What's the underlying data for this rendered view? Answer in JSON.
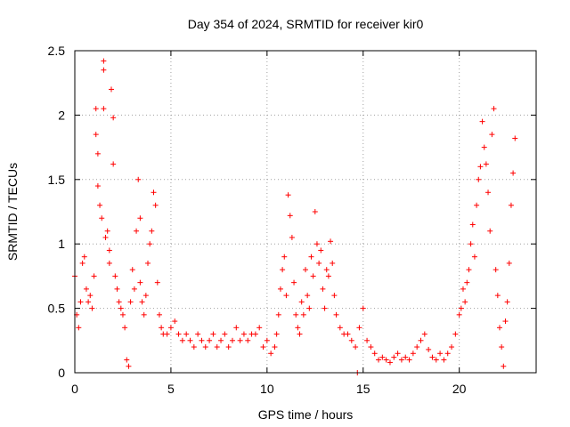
{
  "chart_data": {
    "type": "scatter",
    "title": "Day 354 of 2024, SRMTID for receiver kir0",
    "xlabel": "GPS time / hours",
    "ylabel": "SRMTID / TECUs",
    "xlim": [
      0,
      24
    ],
    "ylim": [
      0,
      2.5
    ],
    "xticks": [
      0,
      5,
      10,
      15,
      20
    ],
    "xtick_labels": [
      "0",
      "5",
      "10",
      "15",
      "20"
    ],
    "yticks": [
      0,
      0.5,
      1,
      1.5,
      2,
      2.5
    ],
    "ytick_labels": [
      "0",
      "0.5",
      "1",
      "1.5",
      "2",
      "2.5"
    ],
    "grid": true,
    "marker": "+",
    "color": "#ff0000",
    "series": [
      {
        "name": "kir0",
        "x": [
          0.0,
          0.1,
          0.2,
          0.3,
          0.4,
          0.5,
          0.6,
          0.7,
          0.8,
          0.9,
          1.0,
          1.1,
          1.1,
          1.2,
          1.2,
          1.3,
          1.4,
          1.5,
          1.5,
          1.5,
          1.6,
          1.7,
          1.8,
          1.8,
          1.9,
          2.0,
          2.0,
          2.1,
          2.2,
          2.3,
          2.4,
          2.5,
          2.6,
          2.7,
          2.8,
          2.9,
          3.0,
          3.1,
          3.2,
          3.3,
          3.4,
          3.4,
          3.5,
          3.6,
          3.7,
          3.8,
          3.9,
          4.0,
          4.1,
          4.2,
          4.3,
          4.4,
          4.5,
          4.6,
          4.8,
          5.0,
          5.2,
          5.4,
          5.6,
          5.8,
          6.0,
          6.2,
          6.4,
          6.6,
          6.8,
          7.0,
          7.2,
          7.4,
          7.6,
          7.8,
          8.0,
          8.2,
          8.4,
          8.6,
          8.8,
          9.0,
          9.2,
          9.4,
          9.6,
          9.8,
          10.0,
          10.2,
          10.4,
          10.5,
          10.6,
          10.7,
          10.8,
          10.9,
          11.0,
          11.1,
          11.2,
          11.3,
          11.4,
          11.5,
          11.6,
          11.7,
          11.8,
          11.9,
          12.0,
          12.1,
          12.2,
          12.3,
          12.4,
          12.5,
          12.6,
          12.7,
          12.8,
          12.9,
          13.0,
          13.1,
          13.2,
          13.3,
          13.4,
          13.5,
          13.6,
          13.8,
          14.0,
          14.2,
          14.4,
          14.6,
          14.7,
          14.8,
          15.0,
          15.2,
          15.4,
          15.6,
          15.8,
          16.0,
          16.2,
          16.4,
          16.6,
          16.8,
          17.0,
          17.2,
          17.4,
          17.6,
          17.8,
          18.0,
          18.2,
          18.4,
          18.6,
          18.8,
          19.0,
          19.2,
          19.4,
          19.6,
          19.8,
          20.0,
          20.1,
          20.2,
          20.3,
          20.4,
          20.5,
          20.6,
          20.7,
          20.8,
          20.9,
          21.0,
          21.1,
          21.2,
          21.3,
          21.4,
          21.5,
          21.6,
          21.7,
          21.8,
          21.9,
          22.0,
          22.1,
          22.2,
          22.3,
          22.4,
          22.5,
          22.6,
          22.7,
          22.8,
          22.9
        ],
        "y": [
          0.75,
          0.45,
          0.35,
          0.55,
          0.85,
          0.9,
          0.65,
          0.55,
          0.6,
          0.5,
          0.75,
          2.05,
          1.85,
          1.7,
          1.45,
          1.3,
          1.2,
          2.42,
          2.35,
          2.05,
          1.05,
          1.1,
          0.95,
          0.85,
          2.2,
          1.98,
          1.62,
          0.75,
          0.65,
          0.55,
          0.5,
          0.45,
          0.35,
          0.1,
          0.05,
          0.55,
          0.8,
          0.65,
          1.1,
          1.5,
          1.2,
          0.7,
          0.55,
          0.45,
          0.6,
          0.85,
          1.0,
          1.1,
          1.4,
          1.3,
          0.7,
          0.45,
          0.35,
          0.3,
          0.3,
          0.35,
          0.4,
          0.3,
          0.25,
          0.3,
          0.25,
          0.2,
          0.3,
          0.25,
          0.2,
          0.25,
          0.3,
          0.2,
          0.25,
          0.3,
          0.2,
          0.25,
          0.35,
          0.25,
          0.3,
          0.25,
          0.3,
          0.3,
          0.35,
          0.2,
          0.25,
          0.15,
          0.2,
          0.3,
          0.45,
          0.65,
          0.8,
          0.9,
          0.6,
          1.38,
          1.22,
          1.05,
          0.7,
          0.45,
          0.35,
          0.3,
          0.55,
          0.45,
          0.8,
          0.6,
          0.5,
          0.9,
          0.75,
          1.25,
          1.0,
          0.85,
          0.95,
          0.65,
          0.5,
          0.8,
          0.75,
          1.02,
          0.85,
          0.6,
          0.45,
          0.35,
          0.3,
          0.3,
          0.25,
          0.2,
          0.0,
          0.35,
          0.5,
          0.25,
          0.2,
          0.15,
          0.1,
          0.12,
          0.1,
          0.08,
          0.12,
          0.15,
          0.1,
          0.12,
          0.1,
          0.15,
          0.2,
          0.25,
          0.3,
          0.18,
          0.12,
          0.1,
          0.15,
          0.1,
          0.15,
          0.2,
          0.3,
          0.45,
          0.5,
          0.65,
          0.55,
          0.7,
          0.8,
          1.0,
          1.15,
          0.9,
          1.3,
          1.5,
          1.6,
          1.95,
          1.75,
          1.62,
          1.4,
          1.1,
          1.85,
          2.05,
          0.8,
          0.6,
          0.35,
          0.2,
          0.05,
          0.4,
          0.55,
          0.85,
          1.3,
          1.55,
          1.82
        ]
      }
    ]
  }
}
